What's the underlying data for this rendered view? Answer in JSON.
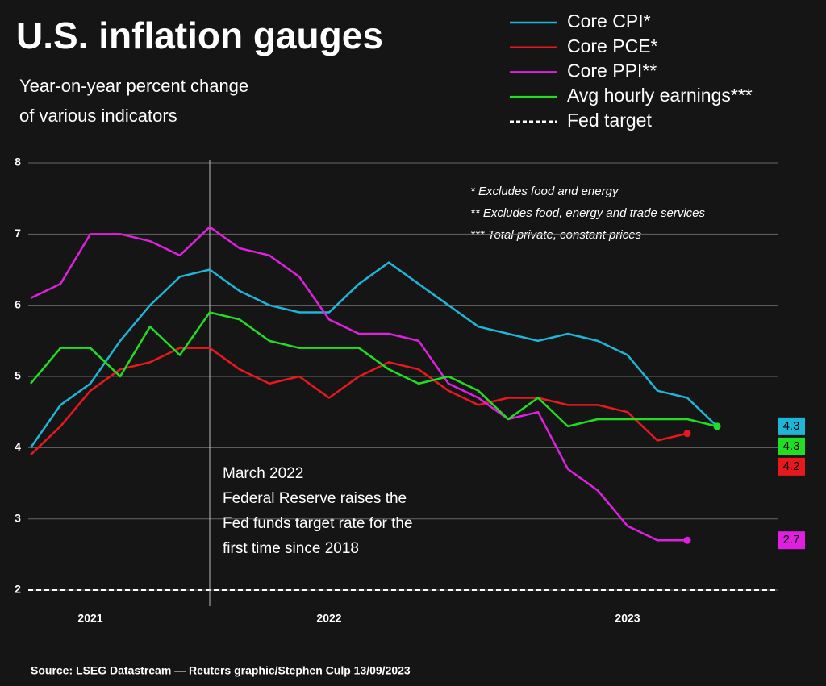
{
  "chart_data": {
    "type": "line",
    "title": "U.S. inflation gauges",
    "subtitle": [
      "Year-on-year percent change",
      "of various indicators"
    ],
    "categories": [
      null,
      null,
      "2021",
      null,
      null,
      null,
      null,
      null,
      null,
      null,
      "2022",
      null,
      null,
      null,
      null,
      null,
      null,
      null,
      null,
      null,
      "2023",
      null,
      null,
      null
    ],
    "series": [
      {
        "name": "Core CPI*",
        "color": "#1fb5d9",
        "values": [
          4.0,
          4.6,
          4.9,
          5.5,
          6.0,
          6.4,
          6.5,
          6.2,
          6.0,
          5.9,
          5.9,
          6.3,
          6.6,
          6.3,
          6.0,
          5.7,
          5.6,
          5.5,
          5.6,
          5.5,
          5.3,
          4.8,
          4.7,
          4.3
        ]
      },
      {
        "name": "Core PCE*",
        "color": "#e8191c",
        "values": [
          3.9,
          4.3,
          4.8,
          5.1,
          5.2,
          5.4,
          5.4,
          5.1,
          4.9,
          5.0,
          4.7,
          5.0,
          5.2,
          5.1,
          4.8,
          4.6,
          4.7,
          4.7,
          4.6,
          4.6,
          4.5,
          4.1,
          4.2,
          null
        ]
      },
      {
        "name": "Core PPI**",
        "color": "#e020e0",
        "values": [
          6.1,
          6.3,
          7.0,
          7.0,
          6.9,
          6.7,
          7.1,
          6.8,
          6.7,
          6.4,
          5.8,
          5.6,
          5.6,
          5.5,
          4.9,
          4.7,
          4.4,
          4.5,
          3.7,
          3.4,
          2.9,
          2.7,
          2.7,
          null
        ]
      },
      {
        "name": "Avg hourly earnings***",
        "color": "#22dd22",
        "values": [
          4.9,
          5.4,
          5.4,
          5.0,
          5.7,
          5.3,
          5.9,
          5.8,
          5.5,
          5.4,
          5.4,
          5.4,
          5.1,
          4.9,
          5.0,
          4.8,
          4.4,
          4.7,
          4.3,
          4.4,
          4.4,
          4.4,
          4.4,
          4.3
        ]
      }
    ],
    "reference_line": {
      "name": "Fed target",
      "value": 2,
      "color": "#ffffff",
      "dashed": true
    },
    "end_labels": true,
    "ylim": [
      1.8,
      8
    ],
    "yticks": [
      2,
      3,
      4,
      5,
      6,
      7,
      8
    ],
    "grid": true,
    "legend": "top-right",
    "annotation": {
      "category_index": 6,
      "lines": [
        "March 2022",
        "Federal Reserve raises the",
        "Fed funds target rate for the",
        "first time since 2018"
      ]
    },
    "footnotes": [
      "* Excludes food and energy",
      "** Excludes food, energy and trade services",
      "*** Total private, constant prices"
    ],
    "source": "Source: LSEG Datastream — Reuters graphic/Stephen Culp 13/09/2023"
  }
}
